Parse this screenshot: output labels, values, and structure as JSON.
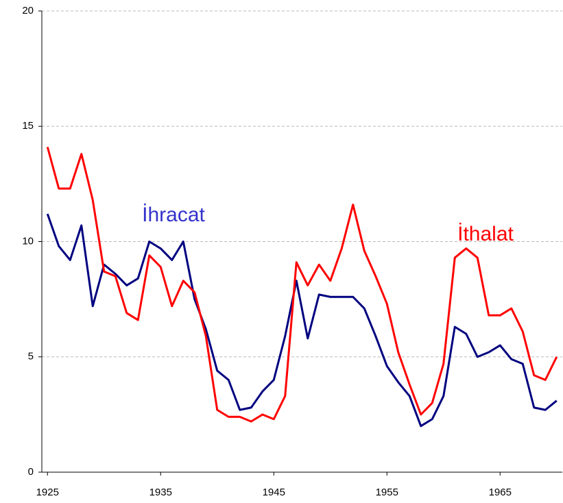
{
  "chart_data": {
    "type": "line",
    "x": [
      1925,
      1926,
      1927,
      1928,
      1929,
      1930,
      1931,
      1932,
      1933,
      1934,
      1935,
      1936,
      1937,
      1938,
      1939,
      1940,
      1941,
      1942,
      1943,
      1944,
      1945,
      1946,
      1947,
      1948,
      1949,
      1950,
      1951,
      1952,
      1953,
      1954,
      1955,
      1956,
      1957,
      1958,
      1959,
      1960,
      1961,
      1962,
      1963,
      1964,
      1965,
      1966,
      1967,
      1968,
      1969,
      1970
    ],
    "series": [
      {
        "name": "İhracat",
        "color": "#000080",
        "label_color": "#3333cc",
        "values": [
          11.2,
          9.8,
          9.2,
          10.7,
          7.2,
          9.0,
          8.6,
          8.1,
          8.4,
          10.0,
          9.7,
          9.2,
          10.0,
          7.5,
          6.2,
          4.4,
          4.0,
          2.7,
          2.8,
          3.5,
          4.0,
          5.9,
          8.3,
          5.8,
          7.7,
          7.6,
          7.6,
          7.6,
          7.1,
          5.9,
          4.6,
          3.9,
          3.3,
          2.0,
          2.3,
          3.3,
          6.3,
          6.0,
          5.0,
          5.2,
          5.5,
          4.9,
          4.7,
          2.8,
          2.7,
          3.1
        ]
      },
      {
        "name": "İthalat",
        "color": "#ff0000",
        "label_color": "#ff0000",
        "values": [
          14.1,
          12.3,
          12.3,
          13.8,
          11.8,
          8.7,
          8.5,
          6.9,
          6.6,
          9.4,
          8.9,
          7.2,
          8.3,
          7.8,
          5.9,
          2.7,
          2.4,
          2.4,
          2.2,
          2.5,
          2.3,
          3.3,
          9.1,
          8.1,
          9.0,
          8.3,
          9.7,
          11.6,
          9.6,
          8.5,
          7.3,
          5.2,
          3.8,
          2.5,
          3.0,
          4.7,
          9.3,
          9.7,
          9.3,
          6.8,
          6.8,
          7.1,
          6.1,
          4.2,
          4.0,
          5.0
        ]
      }
    ],
    "xlim": [
      1924.5,
      1970.5
    ],
    "xticks": [
      1925,
      1935,
      1945,
      1955,
      1965
    ],
    "ylim": [
      0,
      20
    ],
    "yticks": [
      0,
      5,
      10,
      15,
      20
    ],
    "grid": true
  }
}
